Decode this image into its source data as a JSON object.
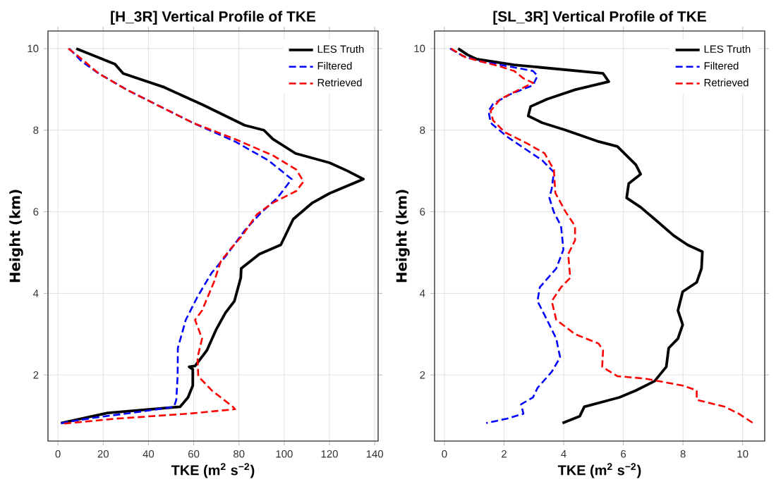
{
  "chart_data": [
    {
      "type": "line",
      "title": "[H_3R] Vertical Profile of TKE",
      "xlabel": "TKE (m$^{2}$ s$^{−2}$)",
      "ylabel": "Height (km)",
      "xlim": [
        -4.4,
        141.5
      ],
      "ylim": [
        0.38,
        10.43
      ],
      "xticks": [
        0,
        20,
        40,
        60,
        80,
        100,
        120,
        140
      ],
      "yticks": [
        2,
        4,
        6,
        8,
        10
      ],
      "grid": true,
      "legend": "top right",
      "series": [
        {
          "name": "LES Truth",
          "color": "#000000",
          "line_style": "solid",
          "x": [
            8.1,
            25.2,
            28.8,
            47,
            64,
            82.5,
            91,
            95,
            105,
            120,
            128,
            135,
            120,
            112.5,
            104,
            98.5,
            89,
            81,
            80.8,
            78,
            74,
            70,
            65.8,
            60.6,
            58,
            59.6,
            59.6,
            57.5,
            54,
            47.5,
            22,
            1.3
          ],
          "values": [
            10.0,
            9.62,
            9.39,
            9.05,
            8.62,
            8.12,
            8.0,
            7.78,
            7.43,
            7.2,
            7.0,
            6.8,
            6.45,
            6.22,
            5.82,
            5.19,
            4.96,
            4.61,
            4.38,
            3.81,
            3.52,
            3.12,
            2.6,
            2.22,
            2.2,
            2.14,
            1.74,
            1.45,
            1.22,
            1.19,
            1.07,
            0.82
          ]
        },
        {
          "name": "Filtered",
          "color": "#0000ff",
          "line_style": "dashed",
          "x": [
            5,
            10.6,
            18,
            30.4,
            43,
            59.6,
            78.3,
            93,
            103.3,
            97,
            90,
            82.5,
            74,
            67.9,
            61.7,
            56.5,
            53,
            52.9,
            52.3,
            51.3,
            36.7,
            15.8,
            1.3
          ],
          "values": [
            10.0,
            9.68,
            9.39,
            8.99,
            8.64,
            8.18,
            7.72,
            7.26,
            6.8,
            6.34,
            5.99,
            5.54,
            4.9,
            4.5,
            3.92,
            3.35,
            2.66,
            1.97,
            1.39,
            1.22,
            1.1,
            0.95,
            0.82
          ]
        },
        {
          "name": "Retrieved",
          "color": "#ff0000",
          "line_style": "dashed",
          "x": [
            4.6,
            10.6,
            18,
            30.4,
            43,
            59.6,
            78.3,
            95,
            105.4,
            108.5,
            105.4,
            95,
            88,
            81.5,
            76,
            72,
            68.9,
            63.7,
            60.6,
            63.7,
            61.7,
            62,
            68,
            77.3,
            78.3,
            57.5,
            26,
            1.3
          ],
          "values": [
            10.0,
            9.74,
            9.39,
            8.99,
            8.64,
            8.18,
            7.78,
            7.38,
            7.03,
            6.74,
            6.51,
            6.22,
            5.94,
            5.42,
            5.07,
            4.79,
            4.27,
            3.58,
            3.35,
            2.89,
            2.43,
            1.97,
            1.62,
            1.22,
            1.16,
            1.05,
            0.93,
            0.8
          ]
        }
      ]
    },
    {
      "type": "line",
      "title": "[SL_3R] Vertical Profile of TKE",
      "xlabel": "TKE (m$^{2}$ s$^{−2}$)",
      "ylabel": "Height (km)",
      "xlim": [
        -0.33,
        10.74
      ],
      "ylim": [
        0.38,
        10.43
      ],
      "xticks": [
        0,
        2,
        4,
        6,
        8,
        10
      ],
      "yticks": [
        2,
        4,
        6,
        8,
        10
      ],
      "grid": true,
      "legend": "top right",
      "series": [
        {
          "name": "LES Truth",
          "color": "#000000",
          "line_style": "solid",
          "x": [
            0.46,
            0.77,
            1.08,
            2.34,
            5.32,
            5.51,
            4.38,
            3.44,
            2.89,
            2.81,
            3.28,
            4.07,
            5.17,
            5.8,
            6.42,
            6.58,
            6.18,
            6.11,
            6.58,
            7.05,
            7.68,
            8.15,
            8.65,
            8.62,
            8.46,
            7.99,
            7.83,
            7.99,
            7.83,
            7.52,
            7.44,
            7.05,
            6.42,
            5.87,
            5.56,
            4.69,
            4.54,
            3.96
          ],
          "values": [
            10.0,
            9.85,
            9.74,
            9.6,
            9.39,
            9.19,
            8.99,
            8.76,
            8.58,
            8.35,
            8.18,
            8.0,
            7.72,
            7.6,
            7.15,
            6.92,
            6.69,
            6.34,
            6.11,
            5.82,
            5.42,
            5.19,
            5.02,
            4.61,
            4.27,
            4.04,
            3.58,
            3.23,
            2.89,
            2.66,
            2.2,
            1.85,
            1.62,
            1.45,
            1.39,
            1.22,
            0.99,
            0.82
          ]
        },
        {
          "name": "Filtered",
          "color": "#0000ff",
          "line_style": "dashed",
          "x": [
            0.19,
            0.61,
            1.24,
            2.18,
            2.97,
            3.12,
            2.97,
            2.18,
            1.63,
            1.48,
            1.55,
            2.1,
            2.81,
            3.28,
            3.67,
            3.6,
            3.52,
            3.67,
            3.91,
            3.99,
            3.75,
            3.2,
            3.12,
            3.44,
            3.75,
            3.88,
            3.6,
            3.12,
            2.97,
            2.57,
            2.65,
            2.1,
            1.4
          ],
          "values": [
            10.0,
            9.82,
            9.68,
            9.56,
            9.45,
            9.33,
            9.1,
            8.87,
            8.64,
            8.47,
            8.18,
            7.84,
            7.49,
            7.26,
            6.97,
            6.57,
            6.34,
            5.99,
            5.65,
            5.07,
            4.61,
            4.15,
            3.81,
            3.35,
            2.89,
            2.43,
            2.08,
            1.68,
            1.45,
            1.28,
            1.05,
            0.93,
            0.82
          ]
        },
        {
          "name": "Retrieved",
          "color": "#ff0000",
          "line_style": "dashed",
          "x": [
            0.22,
            0.69,
            1.24,
            1.87,
            2.34,
            2.65,
            2.97,
            2.5,
            1.87,
            1.55,
            1.63,
            2.02,
            2.81,
            3.36,
            3.67,
            3.72,
            4.07,
            4.38,
            4.38,
            4.15,
            4.22,
            3.91,
            3.6,
            3.75,
            4.38,
            5.17,
            5.32,
            5.29,
            5.8,
            6.73,
            7.99,
            8.46,
            8.46,
            9.4,
            9.87,
            10.35
          ],
          "values": [
            10.0,
            9.79,
            9.68,
            9.56,
            9.45,
            9.27,
            9.16,
            8.99,
            8.76,
            8.47,
            8.24,
            7.95,
            7.66,
            7.43,
            7.03,
            6.46,
            5.99,
            5.65,
            5.3,
            4.96,
            4.38,
            4.15,
            3.81,
            3.35,
            3.0,
            2.77,
            2.6,
            2.2,
            1.97,
            1.91,
            1.74,
            1.62,
            1.39,
            1.22,
            1.05,
            0.82
          ]
        }
      ]
    }
  ]
}
